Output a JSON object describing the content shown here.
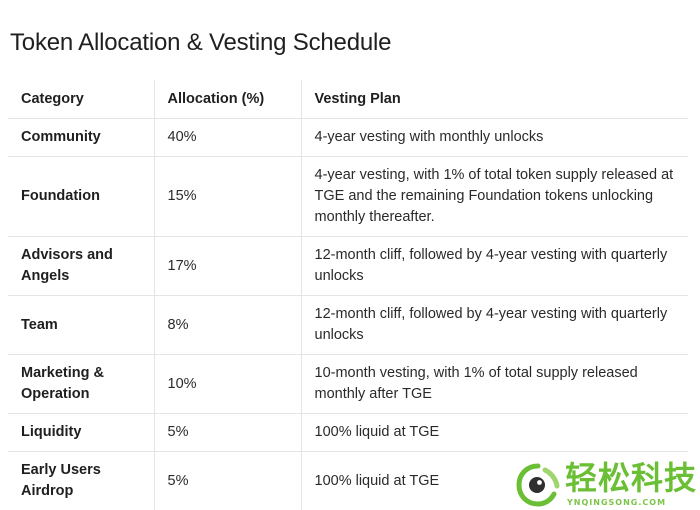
{
  "title": "Token Allocation & Vesting Schedule",
  "table": {
    "headers": [
      "Category",
      "Allocation (%)",
      "Vesting Plan"
    ],
    "rows": [
      {
        "category": "Community",
        "allocation": "40%",
        "vesting": "4-year vesting with monthly unlocks"
      },
      {
        "category": "Foundation",
        "allocation": "15%",
        "vesting": "4-year vesting, with 1% of total token supply released at TGE and the remaining Foundation tokens unlocking monthly thereafter."
      },
      {
        "category": "Advisors and Angels",
        "allocation": "17%",
        "vesting": "12-month cliff, followed by 4-year vesting with quarterly unlocks"
      },
      {
        "category": "Team",
        "allocation": "8%",
        "vesting": "12-month cliff, followed by 4-year vesting with quarterly unlocks"
      },
      {
        "category": "Marketing & Operation",
        "allocation": "10%",
        "vesting": "10-month vesting, with 1% of total supply released monthly after TGE"
      },
      {
        "category": "Liquidity",
        "allocation": "5%",
        "vesting": "100% liquid at TGE"
      },
      {
        "category": "Early Users Airdrop",
        "allocation": "5%",
        "vesting": "100% liquid at TGE"
      }
    ]
  },
  "watermark": {
    "text": "轻松科技",
    "subtext": "YNQINGSONG.COM",
    "icon": "watermark-logo-icon",
    "color": "#6bbf34"
  }
}
